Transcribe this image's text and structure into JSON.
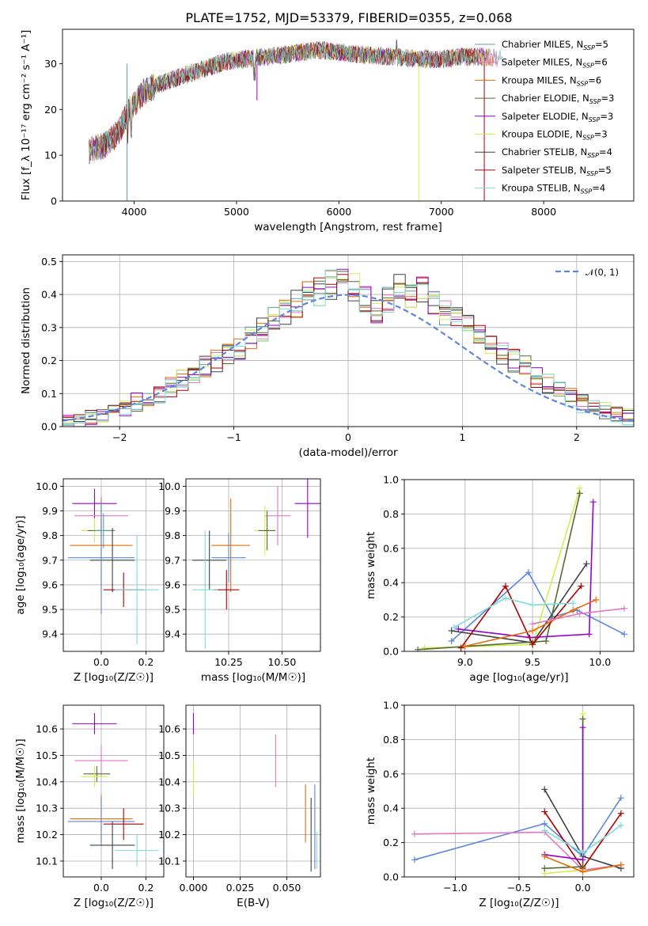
{
  "figure_title": "PLATE=1752, MJD=53379, FIBERID=0355, z=0.068",
  "colors": {
    "chabrier_miles": "#5f9ea0",
    "salpeter_miles": "#e377c2",
    "kroupa_miles": "#e46c0a",
    "chabrier_elodie": "#556b2f",
    "salpeter_elodie": "#9400d3",
    "kroupa_elodie": "#d4ec52",
    "chabrier_stelib": "#404040",
    "salpeter_stelib": "#aa0000",
    "kroupa_stelib": "#7edcdc",
    "blue": "#5b86dc",
    "salpeter_light": "#e88fc8"
  },
  "chart_data": [
    {
      "id": "spectrum",
      "type": "line",
      "title": "PLATE=1752, MJD=53379, FIBERID=0355, z=0.068",
      "xlabel": "wavelength [Angstrom, rest frame]",
      "ylabel": "Flux [f_λ 10⁻¹⁷ erg cm⁻² s⁻¹ A⁻¹]",
      "xlim": [
        3300,
        8880
      ],
      "ylim": [
        0,
        37.5
      ],
      "xticks": [
        "4000",
        "5000",
        "6000",
        "7000",
        "8000"
      ],
      "yticks": [
        "0",
        "10",
        "20",
        "30"
      ],
      "grid": false,
      "legend_position": "upper-right",
      "legend": [
        "Chabrier MILES, N_SSP=5",
        "Salpeter MILES, N_SSP=6",
        "Kroupa MILES, N_SSP=6",
        "Chabrier ELODIE, N_SSP=3",
        "Salpeter ELODIE, N_SSP=3",
        "Kroupa ELODIE, N_SSP=3",
        "Chabrier STELIB, N_SSP=4",
        "Salpeter STELIB, N_SSP=5",
        "Kroupa STELIB, N_SSP=4"
      ],
      "continuum": {
        "x": [
          3560,
          3700,
          3850,
          3950,
          4100,
          4300,
          4500,
          4700,
          4900,
          5100,
          5300,
          5500,
          5800,
          6000,
          6200,
          6500,
          6800,
          7000,
          7200,
          7400,
          7600
        ],
        "y": [
          11,
          12,
          15,
          20,
          24,
          26,
          27.5,
          29,
          30.5,
          31,
          31.5,
          32,
          33,
          32.5,
          32,
          31.5,
          31,
          31,
          31.5,
          31.5,
          31
        ]
      },
      "spikes": [
        {
          "x": 3930,
          "y": 0,
          "series": "Chabrier MILES"
        },
        {
          "x": 5200,
          "y": 22,
          "series": "Salpeter ELODIE"
        },
        {
          "x": 6780,
          "y": 0,
          "series": "Kroupa ELODIE"
        },
        {
          "x": 7420,
          "y": 0,
          "series": "Salpeter STELIB"
        }
      ]
    },
    {
      "id": "residual-histogram",
      "type": "line",
      "xlabel": "(data-model)/error",
      "ylabel": "Normed distribution",
      "xlim": [
        -2.5,
        2.5
      ],
      "ylim": [
        0,
        0.52
      ],
      "xticks": [
        "−2",
        "−1",
        "0",
        "1",
        "2"
      ],
      "yticks": [
        "0.0",
        "0.1",
        "0.2",
        "0.3",
        "0.4",
        "0.5"
      ],
      "grid": true,
      "legend_position": "upper-right",
      "legend": [
        "𝒩(0, 1)"
      ],
      "bin_width": 0.1,
      "bins_from": -2.5,
      "histogram_values": [
        0.015,
        0.02,
        0.03,
        0.04,
        0.05,
        0.06,
        0.075,
        0.085,
        0.1,
        0.12,
        0.14,
        0.16,
        0.18,
        0.2,
        0.22,
        0.24,
        0.27,
        0.29,
        0.32,
        0.35,
        0.37,
        0.4,
        0.41,
        0.43,
        0.45,
        0.42,
        0.38,
        0.35,
        0.39,
        0.42,
        0.4,
        0.41,
        0.38,
        0.35,
        0.33,
        0.3,
        0.28,
        0.25,
        0.22,
        0.2,
        0.18,
        0.15,
        0.13,
        0.11,
        0.09,
        0.07,
        0.06,
        0.05,
        0.04,
        0.03
      ]
    },
    {
      "id": "age-vs-metallicity",
      "type": "scatter",
      "xlabel": "Z [log₁₀(Z/Z☉)]",
      "ylabel": "age  [log₁₀(age/yr)]",
      "xlim": [
        -0.17,
        0.28
      ],
      "ylim": [
        9.33,
        10.03
      ],
      "xticks": [
        "0.0",
        "0.2"
      ],
      "yticks": [
        "9.4",
        "9.5",
        "9.6",
        "9.7",
        "9.8",
        "9.9",
        "10.0"
      ],
      "grid": true,
      "points": [
        {
          "series": "Salpeter ELODIE",
          "x": -0.03,
          "y": 9.93,
          "xerr": 0.1,
          "yerr": 0.06
        },
        {
          "series": "Salpeter MILES",
          "x": 0.0,
          "y": 9.88,
          "xerr": 0.12,
          "yerr": 0.08
        },
        {
          "series": "Kroupa ELODIE",
          "x": -0.03,
          "y": 9.82,
          "xerr": 0.06,
          "yerr": 0.05
        },
        {
          "series": "Chabrier ELODIE",
          "x": 0.0,
          "y": 9.82,
          "xerr": 0.06,
          "yerr": 0.05
        },
        {
          "series": "Chabrier MILES",
          "x": 0.01,
          "y": 9.82,
          "xerr": 0.04,
          "yerr": 0.07
        },
        {
          "series": "Kroupa MILES",
          "x": 0.0,
          "y": 9.76,
          "xerr": 0.14,
          "yerr": 0.19
        },
        {
          "series": "Chabrier STELIB",
          "x": 0.05,
          "y": 9.7,
          "xerr": 0.1,
          "yerr": 0.13
        },
        {
          "series": "Blue",
          "x": 0.0,
          "y": 9.71,
          "xerr": 0.15,
          "yerr": 0.23
        },
        {
          "series": "Salpeter STELIB",
          "x": 0.1,
          "y": 9.58,
          "xerr": 0.09,
          "yerr": 0.07
        },
        {
          "series": "Kroupa STELIB",
          "x": 0.16,
          "y": 9.58,
          "xerr": 0.1,
          "yerr": 0.22
        }
      ]
    },
    {
      "id": "age-vs-mass",
      "type": "scatter",
      "xlabel": "mass [log₁₀(M/M☉)]",
      "ylabel": "",
      "xlim": [
        10.05,
        10.68
      ],
      "ylim": [
        9.33,
        10.03
      ],
      "xticks": [
        "10.25",
        "10.50"
      ],
      "yticks": [
        "9.4",
        "9.5",
        "9.6",
        "9.7",
        "9.8",
        "9.9",
        "10.0"
      ],
      "grid": true,
      "points": [
        {
          "series": "Salpeter ELODIE",
          "x": 10.62,
          "y": 9.93,
          "xerr": 0.06,
          "yerr": 0.14
        },
        {
          "series": "Salpeter MILES",
          "x": 10.48,
          "y": 9.88,
          "xerr": 0.06,
          "yerr": 0.12
        },
        {
          "series": "Kroupa ELODIE",
          "x": 10.42,
          "y": 9.82,
          "xerr": 0.05,
          "yerr": 0.1
        },
        {
          "series": "Chabrier ELODIE",
          "x": 10.43,
          "y": 9.82,
          "xerr": 0.04,
          "yerr": 0.08
        },
        {
          "series": "Kroupa MILES",
          "x": 10.26,
          "y": 9.76,
          "xerr": 0.09,
          "yerr": 0.19
        },
        {
          "series": "Chabrier STELIB",
          "x": 10.16,
          "y": 9.7,
          "xerr": 0.08,
          "yerr": 0.12
        },
        {
          "series": "Blue",
          "x": 10.25,
          "y": 9.71,
          "xerr": 0.08,
          "yerr": 0.1
        },
        {
          "series": "Salpeter STELIB",
          "x": 10.24,
          "y": 9.58,
          "xerr": 0.06,
          "yerr": 0.08
        },
        {
          "series": "Kroupa STELIB",
          "x": 10.14,
          "y": 9.58,
          "xerr": 0.06,
          "yerr": 0.24
        }
      ]
    },
    {
      "id": "mass-weight-vs-age",
      "type": "line",
      "xlabel": "age  [log₁₀(age/yr)]",
      "ylabel": "mass weight",
      "xlim": [
        8.55,
        10.25
      ],
      "ylim": [
        0,
        1.0
      ],
      "xticks": [
        "9.0",
        "9.5",
        "10.0"
      ],
      "yticks": [
        "0.0",
        "0.2",
        "0.4",
        "0.6",
        "0.8",
        "1.0"
      ],
      "grid": true,
      "series": [
        {
          "name": "Blue",
          "x": [
            8.9,
            9.47,
            9.65,
            9.83,
            10.18
          ],
          "y": [
            0.06,
            0.46,
            0.2,
            0.24,
            0.1
          ]
        },
        {
          "name": "Chabrier STELIB",
          "x": [
            8.9,
            9.5,
            9.9
          ],
          "y": [
            0.12,
            0.05,
            0.51
          ]
        },
        {
          "name": "Kroupa ELODIE",
          "x": [
            8.7,
            9.5,
            9.85
          ],
          "y": [
            0.02,
            0.04,
            0.95
          ]
        },
        {
          "name": "Chabrier ELODIE",
          "x": [
            8.65,
            9.6,
            9.85
          ],
          "y": [
            0.01,
            0.06,
            0.92
          ]
        },
        {
          "name": "Salpeter ELODIE",
          "x": [
            8.95,
            9.48,
            9.92,
            9.95
          ],
          "y": [
            0.13,
            0.08,
            0.1,
            0.87
          ]
        },
        {
          "name": "Salpeter STELIB",
          "x": [
            8.97,
            9.3,
            9.5,
            9.86
          ],
          "y": [
            0.02,
            0.38,
            0.04,
            0.38
          ]
        },
        {
          "name": "Kroupa STELIB",
          "x": [
            8.92,
            9.3,
            9.5,
            9.8
          ],
          "y": [
            0.14,
            0.31,
            0.27,
            0.28
          ]
        },
        {
          "name": "Kroupa MILES",
          "x": [
            9.0,
            9.5,
            9.8,
            9.97
          ],
          "y": [
            0.03,
            0.12,
            0.24,
            0.3
          ]
        },
        {
          "name": "Salpeter MILES",
          "x": [
            9.5,
            9.85,
            10.18
          ],
          "y": [
            0.16,
            0.22,
            0.25
          ]
        }
      ]
    },
    {
      "id": "mass-vs-metallicity",
      "type": "scatter",
      "xlabel": "Z [log₁₀(Z/Z☉)]",
      "ylabel": "mass [log₁₀(M/M☉)]",
      "xlim": [
        -0.17,
        0.28
      ],
      "ylim": [
        10.04,
        10.69
      ],
      "xticks": [
        "0.0",
        "0.2"
      ],
      "yticks": [
        "10.1",
        "10.2",
        "10.3",
        "10.4",
        "10.5",
        "10.6"
      ],
      "grid": true,
      "points": [
        {
          "series": "Salpeter ELODIE",
          "x": -0.03,
          "y": 10.62,
          "xerr": 0.1,
          "yerr": 0.04
        },
        {
          "series": "Salpeter MILES",
          "x": 0.0,
          "y": 10.48,
          "xerr": 0.12,
          "yerr": 0.06
        },
        {
          "series": "Chabrier ELODIE",
          "x": -0.02,
          "y": 10.43,
          "xerr": 0.06,
          "yerr": 0.03
        },
        {
          "series": "Kroupa ELODIE",
          "x": -0.03,
          "y": 10.42,
          "xerr": 0.06,
          "yerr": 0.04
        },
        {
          "series": "Kroupa MILES",
          "x": 0.0,
          "y": 10.26,
          "xerr": 0.14,
          "yerr": 0.09
        },
        {
          "series": "Blue",
          "x": 0.0,
          "y": 10.25,
          "xerr": 0.15,
          "yerr": 0.09
        },
        {
          "series": "Salpeter STELIB",
          "x": 0.1,
          "y": 10.24,
          "xerr": 0.09,
          "yerr": 0.06
        },
        {
          "series": "Chabrier STELIB",
          "x": 0.05,
          "y": 10.16,
          "xerr": 0.1,
          "yerr": 0.09
        },
        {
          "series": "Kroupa STELIB",
          "x": 0.16,
          "y": 10.14,
          "xerr": 0.1,
          "yerr": 0.06
        }
      ]
    },
    {
      "id": "mass-vs-ebv",
      "type": "scatter",
      "xlabel": "E(B-V)",
      "ylabel": "",
      "xlim": [
        -0.004,
        0.068
      ],
      "ylim": [
        10.04,
        10.69
      ],
      "xticks": [
        "0.000",
        "0.025",
        "0.050"
      ],
      "yticks": [
        "10.1",
        "10.2",
        "10.3",
        "10.4",
        "10.5",
        "10.6"
      ],
      "grid": true,
      "points": [
        {
          "series": "Salpeter ELODIE",
          "x": 0.0,
          "y": 10.62,
          "yerr": 0.04
        },
        {
          "series": "Kroupa ELODIE",
          "x": 0.0,
          "y": 10.41,
          "yerr": 0.06
        },
        {
          "series": "Salpeter MILES",
          "x": 0.044,
          "y": 10.48,
          "yerr": 0.1
        },
        {
          "series": "Kroupa MILES",
          "x": 0.06,
          "y": 10.28,
          "yerr": 0.11
        },
        {
          "series": "Chabrier STELIB",
          "x": 0.063,
          "y": 10.2,
          "yerr": 0.14
        },
        {
          "series": "Blue",
          "x": 0.065,
          "y": 10.23,
          "yerr": 0.16
        },
        {
          "series": "Kroupa STELIB",
          "x": 0.066,
          "y": 10.14,
          "yerr": 0.07
        }
      ]
    },
    {
      "id": "mass-weight-vs-metallicity",
      "type": "line",
      "xlabel": "Z [log₁₀(Z/Z☉)]",
      "ylabel": "mass weight",
      "xlim": [
        -1.4,
        0.4
      ],
      "ylim": [
        0,
        1.0
      ],
      "xticks": [
        "−1.0",
        "−0.5",
        "0.0"
      ],
      "yticks": [
        "0.0",
        "0.2",
        "0.4",
        "0.6",
        "0.8",
        "1.0"
      ],
      "grid": true,
      "series": [
        {
          "name": "Blue",
          "x": [
            -1.32,
            -0.3,
            0.0,
            0.3
          ],
          "y": [
            0.1,
            0.31,
            0.12,
            0.46
          ]
        },
        {
          "name": "Salpeter MILES",
          "x": [
            -1.32,
            -0.3,
            0.0,
            0.3
          ],
          "y": [
            0.25,
            0.26,
            0.04,
            0.07
          ]
        },
        {
          "name": "Chabrier STELIB",
          "x": [
            -0.3,
            0.0,
            0.3
          ],
          "y": [
            0.51,
            0.12,
            0.05
          ]
        },
        {
          "name": "Salpeter STELIB",
          "x": [
            -0.3,
            0.0,
            0.3
          ],
          "y": [
            0.38,
            0.05,
            0.37
          ]
        },
        {
          "name": "Kroupa ELODIE",
          "x": [
            -0.3,
            0.0,
            0.0
          ],
          "y": [
            0.02,
            0.04,
            0.95
          ]
        },
        {
          "name": "Chabrier ELODIE",
          "x": [
            -0.3,
            0.0,
            0.0
          ],
          "y": [
            0.05,
            0.06,
            0.92
          ]
        },
        {
          "name": "Salpeter ELODIE",
          "x": [
            -0.3,
            0.0,
            0.0
          ],
          "y": [
            0.13,
            0.1,
            0.87
          ]
        },
        {
          "name": "Kroupa STELIB",
          "x": [
            -0.3,
            0.0,
            0.3
          ],
          "y": [
            0.27,
            0.14,
            0.3
          ]
        },
        {
          "name": "Kroupa MILES",
          "x": [
            -0.3,
            0.0,
            0.3
          ],
          "y": [
            0.12,
            0.03,
            0.07
          ]
        }
      ]
    }
  ]
}
